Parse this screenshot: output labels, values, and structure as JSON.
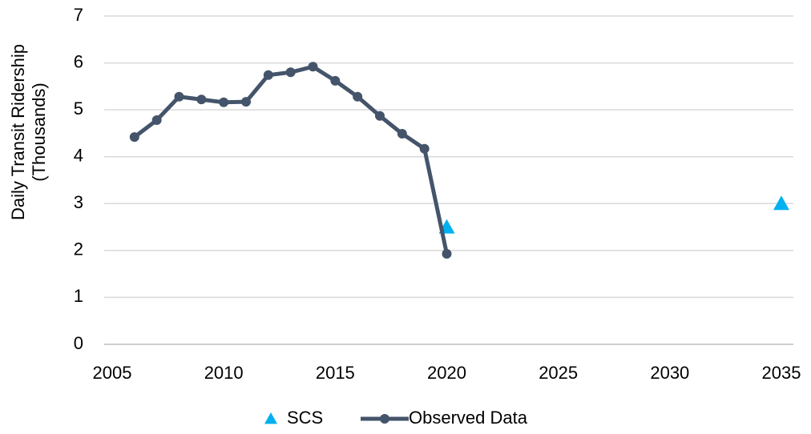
{
  "chart_data": {
    "type": "line",
    "ylabel": [
      "Daily Transit Ridership",
      "(Thousands)"
    ],
    "xlim": [
      2005,
      2035
    ],
    "xticks": [
      2005,
      2010,
      2015,
      2020,
      2025,
      2030,
      2035
    ],
    "ylim": [
      0,
      7
    ],
    "yticks": [
      0,
      1,
      2,
      3,
      4,
      5,
      6,
      7
    ],
    "grid": true,
    "legend": "bottom",
    "series": [
      {
        "name": "SCS",
        "color": "#00b0f0",
        "marker": "triangle",
        "line": false,
        "x": [
          2020,
          2035
        ],
        "values": [
          2.5,
          3.0
        ]
      },
      {
        "name": "Observed Data",
        "color": "#44546a",
        "marker": "circle",
        "line": true,
        "x": [
          2006,
          2007,
          2008,
          2009,
          2010,
          2011,
          2012,
          2013,
          2014,
          2015,
          2016,
          2017,
          2018,
          2019,
          2020
        ],
        "values": [
          4.42,
          4.78,
          5.28,
          5.22,
          5.16,
          5.17,
          5.74,
          5.8,
          5.92,
          5.62,
          5.28,
          4.87,
          4.49,
          4.17,
          1.93
        ]
      }
    ]
  }
}
